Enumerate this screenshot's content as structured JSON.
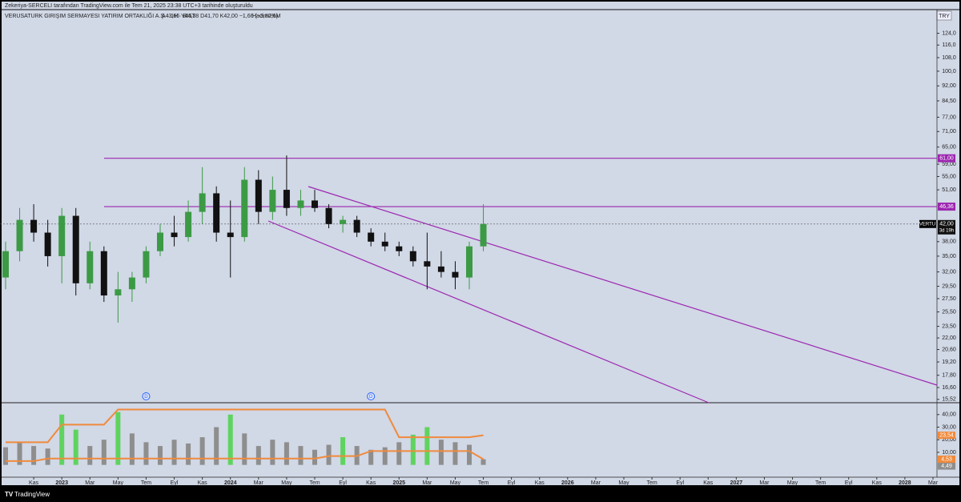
{
  "header": {
    "text": "Zekeriya-SERCELI tarafından TradingView.com ile Tem 21, 2025 23:38 UTC+3 tarihinde oluşturuldu"
  },
  "chart_data": [
    {
      "type": "candlestick",
      "title": "VERUSATURK GIRIŞIM SERMAYESI YATIRIM ORTAKLIĞI A.Ş. · 1H · BIST",
      "ohlc_text": "A43,66 Y44,38 D41,70 K42,00 −1,66 (−3,80%)",
      "volume_text": "Hacim2,6M",
      "currency": "TRY",
      "log_scale": true,
      "grid": false,
      "up_color": "#3c9a45",
      "down_color": "#111111",
      "x": [
        "2022-09",
        "2022-10",
        "2022-11",
        "2022-12",
        "2023-01",
        "2023-02",
        "2023-03",
        "2023-04",
        "2023-05",
        "2023-06",
        "2023-07",
        "2023-08",
        "2023-09",
        "2023-10",
        "2023-11",
        "2023-12",
        "2024-01",
        "2024-02",
        "2024-03",
        "2024-04",
        "2024-05",
        "2024-06",
        "2024-07",
        "2024-08",
        "2024-09",
        "2024-10",
        "2024-11",
        "2024-12",
        "2025-01",
        "2025-02",
        "2025-03",
        "2025-04",
        "2025-05",
        "2025-06",
        "2025-07"
      ],
      "open": [
        31,
        36,
        43,
        40,
        35,
        44,
        30,
        36,
        28,
        29,
        31,
        36,
        40,
        39,
        45,
        50,
        40,
        39,
        54,
        45,
        51,
        46,
        48,
        46,
        42,
        43,
        40,
        38,
        37,
        36,
        34,
        33,
        32,
        31,
        37
      ],
      "high": [
        38,
        46,
        47,
        43,
        46,
        46,
        38,
        37,
        32,
        32,
        37,
        42,
        44,
        48,
        58,
        52,
        48,
        58,
        57,
        55,
        62,
        51,
        51,
        47,
        44,
        44,
        41,
        40,
        38,
        37,
        40,
        36,
        34,
        38,
        47
      ],
      "low": [
        29,
        34,
        38,
        33,
        30,
        28,
        29,
        27,
        24,
        27,
        30,
        35,
        37,
        38,
        42,
        38,
        31,
        38,
        42,
        43,
        44,
        44,
        45,
        41,
        40,
        39,
        37,
        36,
        35,
        33,
        29,
        31,
        29,
        29,
        36
      ],
      "close": [
        36,
        43,
        40,
        35,
        44,
        30,
        36,
        28,
        29,
        31,
        36,
        40,
        39,
        45,
        50,
        40,
        39,
        54,
        45,
        51,
        46,
        48,
        46,
        42,
        43,
        40,
        38,
        37,
        36,
        34,
        33,
        32,
        31,
        37,
        42
      ],
      "xlim": [
        "2022-09",
        "2028-03"
      ],
      "xticks": [
        {
          "value": "2022-11",
          "label": "Kas"
        },
        {
          "value": "2023-01",
          "label": "2023"
        },
        {
          "value": "2023-03",
          "label": "Mar"
        },
        {
          "value": "2023-05",
          "label": "May"
        },
        {
          "value": "2023-07",
          "label": "Tem"
        },
        {
          "value": "2023-09",
          "label": "Eyl"
        },
        {
          "value": "2023-11",
          "label": "Kas"
        },
        {
          "value": "2024-01",
          "label": "2024"
        },
        {
          "value": "2024-03",
          "label": "Mar"
        },
        {
          "value": "2024-05",
          "label": "May"
        },
        {
          "value": "2024-07",
          "label": "Tem"
        },
        {
          "value": "2024-09",
          "label": "Eyl"
        },
        {
          "value": "2024-11",
          "label": "Kas"
        },
        {
          "value": "2025-01",
          "label": "2025"
        },
        {
          "value": "2025-03",
          "label": "Mar"
        },
        {
          "value": "2025-05",
          "label": "May"
        },
        {
          "value": "2025-07",
          "label": "Tem"
        },
        {
          "value": "2025-09",
          "label": "Eyl"
        },
        {
          "value": "2025-11",
          "label": "Kas"
        },
        {
          "value": "2026-01",
          "label": "2026"
        },
        {
          "value": "2026-03",
          "label": "Mar"
        },
        {
          "value": "2026-05",
          "label": "May"
        },
        {
          "value": "2026-07",
          "label": "Tem"
        },
        {
          "value": "2026-09",
          "label": "Eyl"
        },
        {
          "value": "2026-11",
          "label": "Kas"
        },
        {
          "value": "2027-01",
          "label": "2027"
        },
        {
          "value": "2027-03",
          "label": "Mar"
        },
        {
          "value": "2027-05",
          "label": "May"
        },
        {
          "value": "2027-07",
          "label": "Tem"
        },
        {
          "value": "2027-09",
          "label": "Eyl"
        },
        {
          "value": "2027-11",
          "label": "Kas"
        },
        {
          "value": "2028-01",
          "label": "2028"
        },
        {
          "value": "2028-03",
          "label": "Mar"
        }
      ],
      "ylim": [
        15.3,
        133.1
      ],
      "yticks": [
        {
          "value": 124,
          "label": "124,0"
        },
        {
          "value": 116,
          "label": "116,0"
        },
        {
          "value": 108,
          "label": "108,0"
        },
        {
          "value": 100,
          "label": "100,0"
        },
        {
          "value": 92,
          "label": "92,00"
        },
        {
          "value": 84.5,
          "label": "84,50"
        },
        {
          "value": 77,
          "label": "77,00"
        },
        {
          "value": 71,
          "label": "71,00"
        },
        {
          "value": 65,
          "label": "65,00"
        },
        {
          "value": 59,
          "label": "59,00"
        },
        {
          "value": 55,
          "label": "55,00"
        },
        {
          "value": 51,
          "label": "51,00"
        },
        {
          "value": 38,
          "label": "38,00"
        },
        {
          "value": 35,
          "label": "35,00"
        },
        {
          "value": 32,
          "label": "32,00"
        },
        {
          "value": 29.5,
          "label": "29,50"
        },
        {
          "value": 27.5,
          "label": "27,50"
        },
        {
          "value": 25.5,
          "label": "25,50"
        },
        {
          "value": 23.5,
          "label": "23,50"
        },
        {
          "value": 22,
          "label": "22,00"
        },
        {
          "value": 20.6,
          "label": "20,60"
        },
        {
          "value": 19.2,
          "label": "19,20"
        },
        {
          "value": 17.8,
          "label": "17,80"
        },
        {
          "value": 16.6,
          "label": "16,60"
        },
        {
          "value": 15.52,
          "label": "15,52"
        }
      ],
      "levels": [
        {
          "value": 61,
          "label": "61,00"
        },
        {
          "value": 46.36,
          "label": "46,36"
        }
      ],
      "level_color": "#9c27b0",
      "last_price": {
        "symbol": "VERTU",
        "value": 42,
        "label": "42,00",
        "countdown": "3d 19h"
      },
      "markers": [
        {
          "x": "2023-07",
          "label": "D"
        },
        {
          "x": "2024-11",
          "label": "D"
        }
      ]
    },
    {
      "type": "bar",
      "x": [
        "2022-09",
        "2022-10",
        "2022-11",
        "2022-12",
        "2023-01",
        "2023-02",
        "2023-03",
        "2023-04",
        "2023-05",
        "2023-06",
        "2023-07",
        "2023-08",
        "2023-09",
        "2023-10",
        "2023-11",
        "2023-12",
        "2024-01",
        "2024-02",
        "2024-03",
        "2024-04",
        "2024-05",
        "2024-06",
        "2024-07",
        "2024-08",
        "2024-09",
        "2024-10",
        "2024-11",
        "2024-12",
        "2025-01",
        "2025-02",
        "2025-03",
        "2025-04",
        "2025-05",
        "2025-06",
        "2025-07"
      ],
      "values": [
        14,
        18,
        15,
        13,
        40,
        28,
        15,
        20,
        42,
        25,
        18,
        15,
        20,
        17,
        22,
        30,
        40,
        25,
        15,
        20,
        18,
        15,
        12,
        16,
        22,
        15,
        12,
        14,
        18,
        24,
        30,
        20,
        18,
        16,
        4.49
      ],
      "value_labels": [
        null,
        null,
        null,
        null,
        null,
        null,
        null,
        null,
        null,
        null,
        null,
        null,
        null,
        null,
        null,
        null,
        null,
        null,
        null,
        null,
        null,
        null,
        null,
        null,
        null,
        null,
        null,
        null,
        null,
        null,
        null,
        null,
        null,
        null,
        "4,49"
      ],
      "colors": [
        "#8e8e8e",
        "#8e8e8e",
        "#8e8e8e",
        "#8e8e8e",
        "#5fd35f",
        "#5fd35f",
        "#8e8e8e",
        "#8e8e8e",
        "#5fd35f",
        "#8e8e8e",
        "#8e8e8e",
        "#8e8e8e",
        "#8e8e8e",
        "#8e8e8e",
        "#8e8e8e",
        "#8e8e8e",
        "#5fd35f",
        "#8e8e8e",
        "#8e8e8e",
        "#8e8e8e",
        "#8e8e8e",
        "#8e8e8e",
        "#8e8e8e",
        "#8e8e8e",
        "#5fd35f",
        "#8e8e8e",
        "#8e8e8e",
        "#8e8e8e",
        "#8e8e8e",
        "#5fd35f",
        "#5fd35f",
        "#8e8e8e",
        "#8e8e8e",
        "#8e8e8e",
        "#8e8e8e"
      ],
      "series": [
        {
          "color": "#f08a3c",
          "values": [
            18,
            18,
            18,
            18,
            32,
            32,
            32,
            32,
            44,
            44,
            44,
            44,
            44,
            44,
            44,
            44,
            44,
            44,
            44,
            44,
            44,
            44,
            44,
            44,
            44,
            44,
            44,
            44,
            22,
            22,
            22,
            22,
            22,
            22,
            23.54
          ],
          "value_labels": [
            null,
            null,
            null,
            null,
            null,
            null,
            null,
            null,
            null,
            null,
            null,
            null,
            null,
            null,
            null,
            null,
            null,
            null,
            null,
            null,
            null,
            null,
            null,
            null,
            null,
            null,
            null,
            null,
            null,
            null,
            null,
            null,
            null,
            null,
            "23,54"
          ]
        },
        {
          "color": "#f08a3c",
          "values": [
            3,
            3,
            3,
            5,
            5,
            5,
            5,
            5,
            5,
            5,
            5,
            5,
            5,
            5,
            5,
            5,
            5,
            5,
            5,
            5,
            5,
            5,
            5,
            7,
            7,
            7,
            11,
            11,
            11,
            11,
            11,
            11,
            11,
            11,
            4.53
          ],
          "value_labels": [
            null,
            null,
            null,
            null,
            null,
            null,
            null,
            null,
            null,
            null,
            null,
            null,
            null,
            null,
            null,
            null,
            null,
            null,
            null,
            null,
            null,
            null,
            null,
            null,
            null,
            null,
            null,
            null,
            null,
            null,
            null,
            null,
            null,
            null,
            "4,53"
          ]
        }
      ],
      "ylim": [
        -8.5,
        47.5
      ],
      "yticks": [
        {
          "value": 40,
          "label": "40,00"
        },
        {
          "value": 30,
          "label": "30,00"
        },
        {
          "value": 20,
          "label": "20,00"
        },
        {
          "value": 10,
          "label": "10,00"
        }
      ]
    }
  ],
  "footer": {
    "brand": "TradingView"
  }
}
